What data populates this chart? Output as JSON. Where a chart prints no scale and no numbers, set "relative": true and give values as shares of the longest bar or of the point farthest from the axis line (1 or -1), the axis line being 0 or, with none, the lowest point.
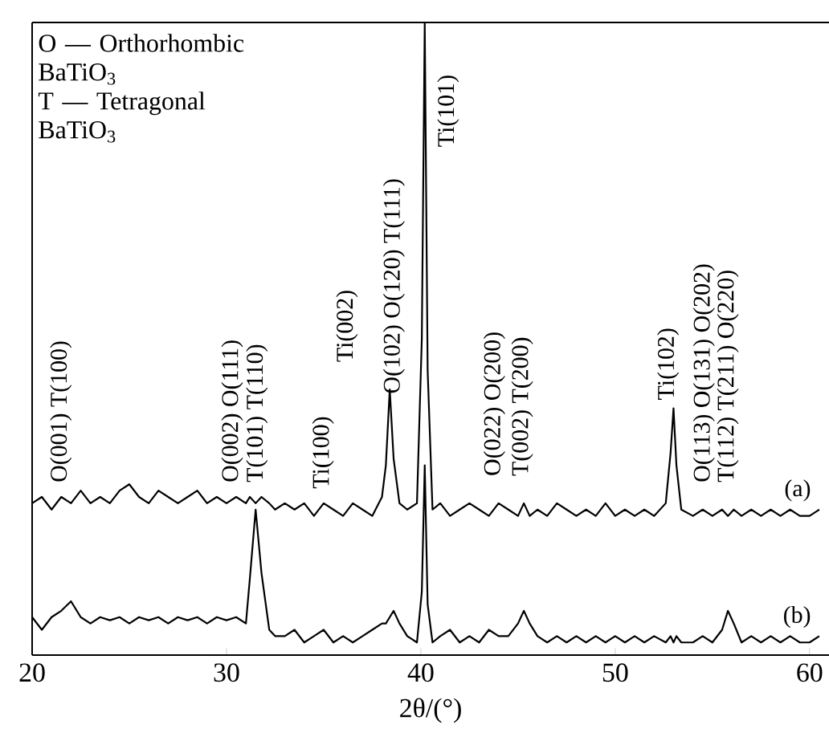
{
  "chart_data": {
    "type": "line",
    "relative": true,
    "xlabel": "2θ/(°)",
    "xlim": [
      20,
      61
    ],
    "xticks": [
      20,
      30,
      40,
      50,
      60
    ],
    "x": [
      20,
      20.5,
      21,
      21.5,
      22,
      22.5,
      23,
      23.5,
      24,
      24.5,
      25,
      25.5,
      26,
      26.5,
      27,
      27.5,
      28,
      28.5,
      29,
      29.5,
      30,
      30.5,
      31,
      31.2,
      31.5,
      31.8,
      32.2,
      32.5,
      33,
      33.5,
      34,
      34.5,
      35,
      35.5,
      36,
      36.5,
      37,
      37.5,
      38,
      38.2,
      38.4,
      38.6,
      38.9,
      39.3,
      39.8,
      40.05,
      40.2,
      40.35,
      40.6,
      41,
      41.5,
      42,
      42.5,
      43,
      43.5,
      44,
      44.5,
      45,
      45.3,
      45.6,
      46,
      46.5,
      47,
      47.5,
      48,
      48.5,
      49,
      49.5,
      50,
      50.5,
      51,
      51.5,
      52,
      52.6,
      52.85,
      53,
      53.15,
      53.4,
      54,
      54.5,
      55,
      55.5,
      55.8,
      56.1,
      56.5,
      57,
      57.5,
      58,
      58.5,
      59,
      59.5,
      60,
      60.5
    ],
    "series": [
      {
        "name": "(a)",
        "color": "#000000",
        "values": [
          0.24,
          0.25,
          0.23,
          0.25,
          0.24,
          0.26,
          0.24,
          0.25,
          0.24,
          0.26,
          0.27,
          0.25,
          0.24,
          0.26,
          0.25,
          0.24,
          0.25,
          0.26,
          0.24,
          0.25,
          0.24,
          0.25,
          0.24,
          0.25,
          0.24,
          0.25,
          0.24,
          0.23,
          0.24,
          0.23,
          0.24,
          0.22,
          0.24,
          0.23,
          0.22,
          0.24,
          0.23,
          0.22,
          0.25,
          0.3,
          0.42,
          0.31,
          0.24,
          0.23,
          0.24,
          0.5,
          1.0,
          0.45,
          0.23,
          0.24,
          0.22,
          0.23,
          0.24,
          0.23,
          0.22,
          0.24,
          0.23,
          0.22,
          0.24,
          0.22,
          0.23,
          0.22,
          0.24,
          0.23,
          0.22,
          0.23,
          0.22,
          0.24,
          0.22,
          0.23,
          0.22,
          0.23,
          0.22,
          0.24,
          0.32,
          0.39,
          0.3,
          0.23,
          0.22,
          0.23,
          0.22,
          0.23,
          0.22,
          0.23,
          0.22,
          0.23,
          0.22,
          0.23,
          0.22,
          0.23,
          0.22,
          0.22,
          0.23
        ]
      },
      {
        "name": "(b)",
        "color": "#000000",
        "values": [
          0.06,
          0.04,
          0.06,
          0.07,
          0.085,
          0.06,
          0.05,
          0.06,
          0.055,
          0.06,
          0.05,
          0.06,
          0.055,
          0.06,
          0.05,
          0.06,
          0.055,
          0.06,
          0.05,
          0.06,
          0.055,
          0.06,
          0.05,
          0.12,
          0.23,
          0.13,
          0.04,
          0.03,
          0.03,
          0.04,
          0.02,
          0.03,
          0.04,
          0.02,
          0.03,
          0.02,
          0.03,
          0.04,
          0.05,
          0.05,
          0.06,
          0.07,
          0.05,
          0.03,
          0.02,
          0.1,
          0.3,
          0.08,
          0.02,
          0.03,
          0.04,
          0.02,
          0.03,
          0.02,
          0.04,
          0.03,
          0.03,
          0.05,
          0.07,
          0.05,
          0.03,
          0.02,
          0.03,
          0.02,
          0.03,
          0.02,
          0.03,
          0.02,
          0.03,
          0.02,
          0.03,
          0.02,
          0.03,
          0.02,
          0.03,
          0.02,
          0.03,
          0.02,
          0.02,
          0.03,
          0.02,
          0.04,
          0.07,
          0.05,
          0.02,
          0.03,
          0.02,
          0.03,
          0.02,
          0.03,
          0.02,
          0.02,
          0.03
        ]
      }
    ],
    "annotations": [
      "O — Orthorhombic BaTiO$_{3}$",
      "T — Tetragonal BaTiO$_{3}$",
      "O(001) T(100)",
      "O(002) O(111)",
      "T(101) T(110)",
      "Ti(100)",
      "Ti(002)",
      "O(102) O(120) T(111)",
      "Ti(101)",
      "O(022) O(200)",
      "T(002) T(200)",
      "Ti(102)",
      "O(113) O(131) O(202)",
      "T(112) T(211) O(220)"
    ]
  }
}
